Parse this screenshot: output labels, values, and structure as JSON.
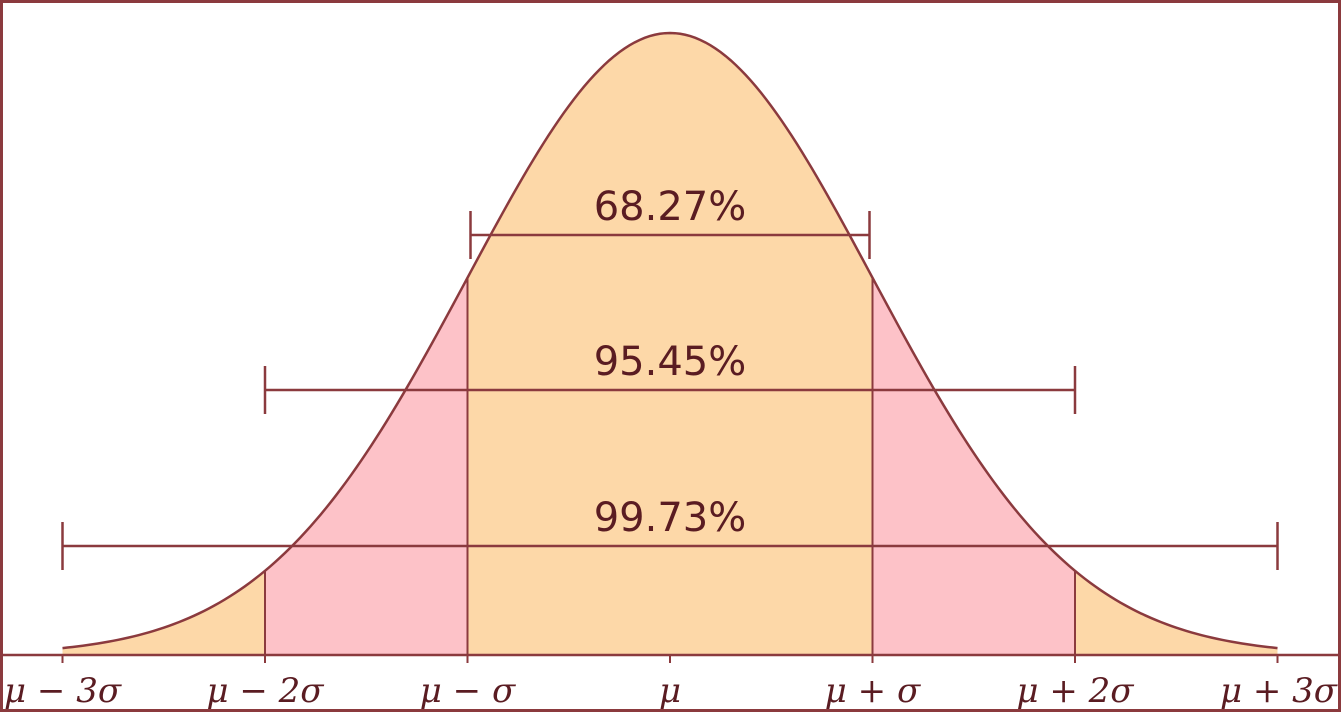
{
  "chart_data": {
    "type": "area",
    "distribution": "normal",
    "x_ticks": [
      {
        "sigma": -3,
        "label": "μ − 3σ"
      },
      {
        "sigma": -2,
        "label": "μ − 2σ"
      },
      {
        "sigma": -1,
        "label": "μ − σ"
      },
      {
        "sigma": 0,
        "label": "μ"
      },
      {
        "sigma": 1,
        "label": "μ + σ"
      },
      {
        "sigma": 2,
        "label": "μ + 2σ"
      },
      {
        "sigma": 3,
        "label": "μ + 3σ"
      }
    ],
    "xlim": [
      -3,
      3
    ],
    "intervals": [
      {
        "from": -1,
        "to": 1,
        "label": "68.27%"
      },
      {
        "from": -2,
        "to": 2,
        "label": "95.45%"
      },
      {
        "from": -3,
        "to": 3,
        "label": "99.73%"
      }
    ],
    "bands": [
      {
        "from": -3,
        "to": -2,
        "color": "#fdd8a8"
      },
      {
        "from": -2,
        "to": -1,
        "color": "#fdc2c8"
      },
      {
        "from": -1,
        "to": 1,
        "color": "#fdd8a8"
      },
      {
        "from": 1,
        "to": 2,
        "color": "#fdc2c8"
      },
      {
        "from": 2,
        "to": 3,
        "color": "#fdd8a8"
      }
    ],
    "colors": {
      "line": "#8b3a3e",
      "text": "#5a1c22",
      "frame": "#8b3a3e"
    },
    "grid": false
  }
}
